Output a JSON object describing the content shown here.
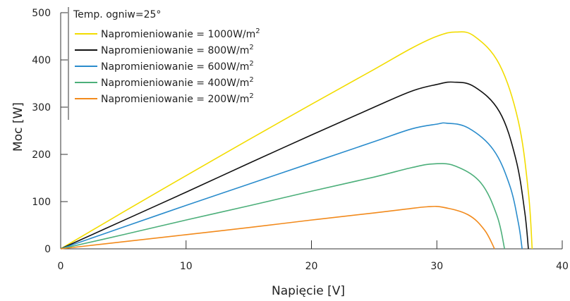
{
  "chart_data": {
    "type": "line",
    "title": "",
    "xlabel": "Napięcie [V]",
    "ylabel": "Moc [W]",
    "xlim": [
      0,
      40
    ],
    "ylim": [
      0,
      500
    ],
    "xticks": [
      0,
      10,
      20,
      30,
      40
    ],
    "yticks": [
      0,
      100,
      200,
      300,
      400,
      500
    ],
    "grid": false,
    "legend": {
      "placement": "top-left",
      "title": "Temp. ogniw=25°",
      "unit_superscript": "2"
    },
    "series": [
      {
        "name": "Napromieniowanie = 1000W/m",
        "color": "#f2dc00",
        "x": [
          0,
          5,
          10,
          15,
          20,
          25,
          28,
          30,
          31.5,
          33,
          35,
          36.5,
          37.3,
          37.6
        ],
        "y": [
          0,
          78,
          155,
          231,
          306,
          380,
          425,
          450,
          459,
          450,
          390,
          270,
          120,
          0
        ]
      },
      {
        "name": "Napromieniowanie = 800W/m",
        "color": "#111111",
        "x": [
          0,
          5,
          10,
          15,
          20,
          25,
          28,
          30,
          31.3,
          33,
          35,
          36.3,
          37,
          37.3
        ],
        "y": [
          0,
          60,
          120,
          181,
          241,
          300,
          334,
          348,
          353,
          343,
          290,
          190,
          80,
          0
        ]
      },
      {
        "name": "Napromieniowanie = 600W/m",
        "color": "#2a8ccc",
        "x": [
          0,
          5,
          10,
          15,
          20,
          25,
          28,
          30,
          30.8,
          32.5,
          34.5,
          35.8,
          36.5,
          36.8
        ],
        "y": [
          0,
          46,
          92,
          137,
          182,
          227,
          254,
          264,
          266,
          256,
          210,
          135,
          55,
          0
        ]
      },
      {
        "name": "Napromieniowanie = 400W/m",
        "color": "#4caf7a",
        "x": [
          0,
          5,
          10,
          15,
          20,
          25,
          28,
          29.8,
          31.5,
          33.5,
          34.8,
          35.4
        ],
        "y": [
          0,
          30,
          61,
          91,
          122,
          152,
          172,
          180,
          175,
          140,
          70,
          0
        ]
      },
      {
        "name": "Napromieniowanie = 200W/m",
        "color": "#f28a1c",
        "x": [
          0,
          5,
          10,
          15,
          20,
          25,
          27.5,
          29.2,
          30.5,
          32.5,
          33.8,
          34.6
        ],
        "y": [
          0,
          15,
          30,
          45,
          61,
          76,
          84,
          89,
          88,
          72,
          40,
          0
        ]
      }
    ]
  }
}
